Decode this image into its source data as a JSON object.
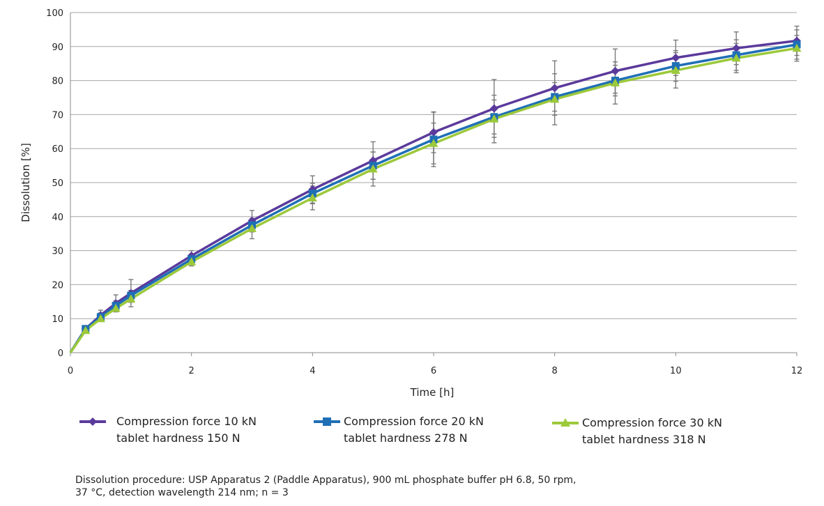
{
  "chart_data": {
    "type": "line",
    "title": "",
    "xlabel": "Time [h]",
    "ylabel": "Dissolution [%]",
    "xlim": [
      0,
      12
    ],
    "ylim": [
      0,
      100
    ],
    "xticks": [
      "0",
      "2",
      "4",
      "6",
      "8",
      "10",
      "12"
    ],
    "yticks": [
      "0",
      "10",
      "20",
      "30",
      "40",
      "50",
      "60",
      "70",
      "80",
      "90",
      "100"
    ],
    "grid": "horizontal",
    "legend_position": "bottom",
    "series": [
      {
        "name_line1": "Compression force 10 kN",
        "name_line2": "tablet hardness 150 N",
        "color": "#5B3A9C",
        "marker": "diamond",
        "x": [
          0,
          0.25,
          0.5,
          0.75,
          1,
          2,
          3,
          4,
          5,
          6,
          7,
          8,
          9,
          10,
          11,
          12
        ],
        "y": [
          0,
          7,
          11,
          14.5,
          17.5,
          28.5,
          38.8,
          48,
          56.5,
          64.8,
          71.8,
          77.8,
          82.8,
          86.7,
          89.5,
          91.7
        ],
        "err": [
          0,
          0.5,
          1.5,
          2.5,
          4,
          1.5,
          3,
          4,
          5.5,
          6,
          8.5,
          8,
          6.5,
          5.2,
          4.8,
          4.3
        ]
      },
      {
        "name_line1": "Compression force 20 kN",
        "name_line2": "tablet hardness 278 N",
        "color": "#1F6FB5",
        "marker": "square",
        "x": [
          0,
          0.25,
          0.5,
          0.75,
          1,
          2,
          3,
          4,
          5,
          6,
          7,
          8,
          9,
          10,
          11,
          12
        ],
        "y": [
          0,
          7,
          10.5,
          13.8,
          16.8,
          27.5,
          37.5,
          46.8,
          55,
          62.7,
          69.3,
          75.2,
          80,
          84.3,
          87.5,
          90.6
        ],
        "err": [
          0,
          0.5,
          1.2,
          1.5,
          1.5,
          1.5,
          2,
          3,
          4,
          8,
          5,
          4.2,
          4.5,
          4.5,
          4.5,
          4.3
        ]
      },
      {
        "name_line1": "Compression force 30 kN",
        "name_line2": "tablet hardness 318 N",
        "color": "#9CC93A",
        "marker": "triangle",
        "x": [
          0,
          0.25,
          0.5,
          0.75,
          1,
          2,
          3,
          4,
          5,
          6,
          7,
          8,
          9,
          10,
          11,
          12
        ],
        "y": [
          0,
          6.5,
          10,
          13,
          15.8,
          26.7,
          36.5,
          45.5,
          54,
          61.5,
          68.7,
          74.5,
          79.3,
          83,
          86.6,
          89.5
        ],
        "err": [
          0,
          0.5,
          0.8,
          1,
          1,
          1.2,
          3,
          3.5,
          5,
          6,
          7,
          7.5,
          6.2,
          5.2,
          4.3,
          3.8
        ]
      }
    ]
  },
  "footnote": {
    "line1": "Dissolution procedure: USP Apparatus 2 (Paddle Apparatus), 900 mL phosphate buffer pH 6.8, 50 rpm,",
    "line2": "37 °C, detection wavelength 214 nm; n = 3"
  }
}
